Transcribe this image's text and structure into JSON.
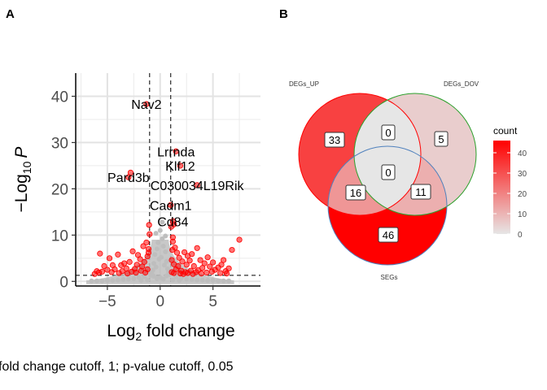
{
  "panels": {
    "a": "A",
    "b": "B"
  },
  "chart_data": [
    {
      "type": "scatter",
      "title": "",
      "xlabel": "Log2 fold change",
      "ylabel": "−Log10 P",
      "xlim": [
        -8,
        9.5
      ],
      "ylim": [
        -1,
        45
      ],
      "xticks": [
        -5,
        0,
        5
      ],
      "yticks": [
        0,
        10,
        20,
        30,
        40
      ],
      "grid": true,
      "caption": "fold change cutoff, 1; p-value cutoff, 0.05",
      "cutoffs": {
        "log2fc": [
          -1,
          1
        ],
        "pvalue_line_y": 1.3
      },
      "colors": {
        "significant": "#ff0000",
        "not_significant": "#bebebe"
      },
      "labels": [
        {
          "text": "Nav2",
          "x": -1.3,
          "y": 38.3
        },
        {
          "text": "Lrrnda",
          "x": 1.5,
          "y": 28.1
        },
        {
          "text": "Klf12",
          "x": 1.9,
          "y": 25.0
        },
        {
          "text": "Pard3b",
          "x": -3.0,
          "y": 22.5
        },
        {
          "text": "C030034L19Rik",
          "x": 3.5,
          "y": 20.8
        },
        {
          "text": "Cadm1",
          "x": 1.0,
          "y": 16.5
        },
        {
          "text": "Cd84",
          "x": 1.2,
          "y": 13.0
        }
      ],
      "series": [
        {
          "name": "significant",
          "points": [
            [
              -1.3,
              38.3
            ],
            [
              1.5,
              28.1
            ],
            [
              1.9,
              25.0
            ],
            [
              -3.0,
              22.5
            ],
            [
              -2.8,
              23.5
            ],
            [
              3.5,
              20.8
            ],
            [
              1.0,
              16.5
            ],
            [
              1.2,
              13.0
            ],
            [
              -1.0,
              10.2
            ],
            [
              7.5,
              9.0
            ],
            [
              6.8,
              6.8
            ],
            [
              -5.7,
              6.0
            ],
            [
              -4.0,
              5.8
            ],
            [
              -3.7,
              3.5
            ],
            [
              -6.0,
              2.2
            ],
            [
              5.8,
              3.6
            ],
            [
              6.5,
              2.8
            ],
            [
              4.5,
              5.2
            ],
            [
              3.5,
              7.2
            ],
            [
              2.6,
              5.5
            ],
            [
              -4.8,
              5.0
            ],
            [
              -2.6,
              6.5
            ],
            [
              -2.1,
              5.7
            ],
            [
              -1.6,
              7.6
            ],
            [
              -1.3,
              8.4
            ],
            [
              -1.2,
              5.4
            ],
            [
              -1.1,
              7.0
            ],
            [
              1.2,
              8.6
            ],
            [
              1.4,
              7.3
            ],
            [
              1.6,
              6.2
            ],
            [
              1.8,
              5.1
            ],
            [
              2.1,
              4.3
            ],
            [
              2.3,
              6.3
            ],
            [
              2.5,
              3.6
            ],
            [
              2.8,
              4.5
            ],
            [
              3.0,
              5.9
            ],
            [
              3.2,
              3.3
            ],
            [
              3.8,
              4.6
            ],
            [
              4.0,
              2.9
            ],
            [
              4.2,
              3.9
            ],
            [
              4.7,
              3.2
            ],
            [
              5.0,
              4.1
            ],
            [
              5.2,
              2.5
            ],
            [
              5.5,
              3.0
            ],
            [
              6.0,
              4.6
            ],
            [
              6.2,
              2.2
            ],
            [
              -1.5,
              4.2
            ],
            [
              -1.7,
              3.2
            ],
            [
              -1.9,
              4.8
            ],
            [
              -2.2,
              3.6
            ],
            [
              -2.4,
              2.7
            ],
            [
              -2.9,
              4.2
            ],
            [
              -3.2,
              2.8
            ],
            [
              -3.4,
              3.9
            ],
            [
              -4.3,
              2.6
            ],
            [
              -4.5,
              3.5
            ],
            [
              -5.0,
              2.5
            ],
            [
              -5.3,
              3.3
            ],
            [
              -5.5,
              2.1
            ],
            [
              1.1,
              4.6
            ],
            [
              1.3,
              3.7
            ],
            [
              1.5,
              2.6
            ],
            [
              1.7,
              3.3
            ],
            [
              2.0,
              2.3
            ],
            [
              2.4,
              2.0
            ],
            [
              2.9,
              2.3
            ],
            [
              3.4,
              2.0
            ],
            [
              3.6,
              2.4
            ],
            [
              4.4,
              1.9
            ],
            [
              4.9,
              2.1
            ],
            [
              5.7,
              1.8
            ],
            [
              6.3,
              1.7
            ],
            [
              -1.2,
              2.6
            ],
            [
              -1.4,
              1.9
            ],
            [
              -1.8,
              2.3
            ],
            [
              -2.3,
              1.9
            ],
            [
              -2.7,
              2.1
            ],
            [
              -3.1,
              1.7
            ],
            [
              -3.6,
              2.2
            ],
            [
              -3.9,
              1.8
            ],
            [
              -4.6,
              2.0
            ],
            [
              -5.8,
              1.9
            ],
            [
              -6.2,
              1.6
            ],
            [
              1.1,
              2.0
            ],
            [
              1.3,
              1.8
            ],
            [
              1.9,
              1.7
            ],
            [
              2.2,
              1.6
            ],
            [
              2.6,
              1.8
            ],
            [
              3.1,
              1.6
            ],
            [
              3.9,
              1.7
            ],
            [
              1.05,
              11.8
            ],
            [
              1.3,
              12.3
            ],
            [
              -1.05,
              12.2
            ],
            [
              -1.1,
              6.2
            ],
            [
              1.15,
              6.8
            ],
            [
              1.2,
              9.5
            ]
          ]
        },
        {
          "name": "not significant",
          "points": [
            [
              0.0,
              11.0
            ],
            [
              0.2,
              9.2
            ],
            [
              -0.2,
              8.4
            ],
            [
              0.3,
              7.6
            ],
            [
              -0.3,
              7.0
            ],
            [
              0.5,
              6.4
            ],
            [
              -0.5,
              5.8
            ],
            [
              0.1,
              5.2
            ],
            [
              -0.1,
              4.8
            ],
            [
              0.6,
              4.3
            ],
            [
              -0.6,
              3.9
            ],
            [
              0.4,
              3.5
            ],
            [
              -0.4,
              3.1
            ],
            [
              0.7,
              2.7
            ],
            [
              -0.7,
              2.4
            ],
            [
              0.8,
              2.0
            ],
            [
              -0.8,
              1.8
            ],
            [
              0.9,
              1.5
            ],
            [
              -0.9,
              1.3
            ],
            [
              0.0,
              0.8
            ],
            [
              0.3,
              0.5
            ],
            [
              -0.3,
              0.6
            ],
            [
              1.5,
              0.9
            ],
            [
              -1.5,
              1.0
            ],
            [
              2.0,
              0.7
            ],
            [
              -2.0,
              0.8
            ],
            [
              2.5,
              0.5
            ],
            [
              -2.5,
              0.6
            ],
            [
              3.0,
              0.4
            ],
            [
              -3.0,
              0.5
            ],
            [
              3.5,
              0.3
            ],
            [
              -3.5,
              0.4
            ],
            [
              4.0,
              0.3
            ],
            [
              -4.0,
              0.3
            ],
            [
              4.5,
              0.2
            ],
            [
              -4.5,
              0.2
            ],
            [
              5.0,
              0.2
            ],
            [
              -5.0,
              0.2
            ],
            [
              5.5,
              0.1
            ],
            [
              -5.5,
              0.1
            ],
            [
              6.0,
              0.1
            ],
            [
              -6.0,
              0.1
            ],
            [
              6.5,
              0.1
            ],
            [
              -6.5,
              0.1
            ],
            [
              1.2,
              0.3
            ],
            [
              -1.2,
              0.3
            ],
            [
              1.8,
              0.2
            ],
            [
              -1.8,
              0.2
            ],
            [
              0.5,
              9.8
            ],
            [
              -0.4,
              10.4
            ],
            [
              0.2,
              12.8
            ],
            [
              0.6,
              1.2
            ],
            [
              -0.6,
              1.1
            ]
          ]
        }
      ]
    },
    {
      "type": "venn",
      "sets": [
        "DEGs_UP",
        "DEGs_DOV",
        "SEGs"
      ],
      "regions": [
        {
          "sets": [
            "DEGs_UP"
          ],
          "count": 33
        },
        {
          "sets": [
            "DEGs_DOV"
          ],
          "count": 5
        },
        {
          "sets": [
            "SEGs"
          ],
          "count": 46
        },
        {
          "sets": [
            "DEGs_UP",
            "DEGs_DOV"
          ],
          "count": 0
        },
        {
          "sets": [
            "DEGs_UP",
            "SEGs"
          ],
          "count": 16
        },
        {
          "sets": [
            "DEGs_DOV",
            "SEGs"
          ],
          "count": 11
        },
        {
          "sets": [
            "DEGs_UP",
            "DEGs_DOV",
            "SEGs"
          ],
          "count": 0
        }
      ],
      "legend": {
        "title": "count",
        "ticks": [
          0,
          10,
          20,
          30,
          40
        ],
        "range": [
          0,
          46
        ],
        "low_color": "#e6e6e6",
        "high_color": "#ff0000",
        "position": "right"
      },
      "outline_colors": {
        "DEGs_UP": "#ff0000",
        "DEGs_DOV": "#2ca02c",
        "SEGs": "#4f81bd"
      }
    }
  ]
}
